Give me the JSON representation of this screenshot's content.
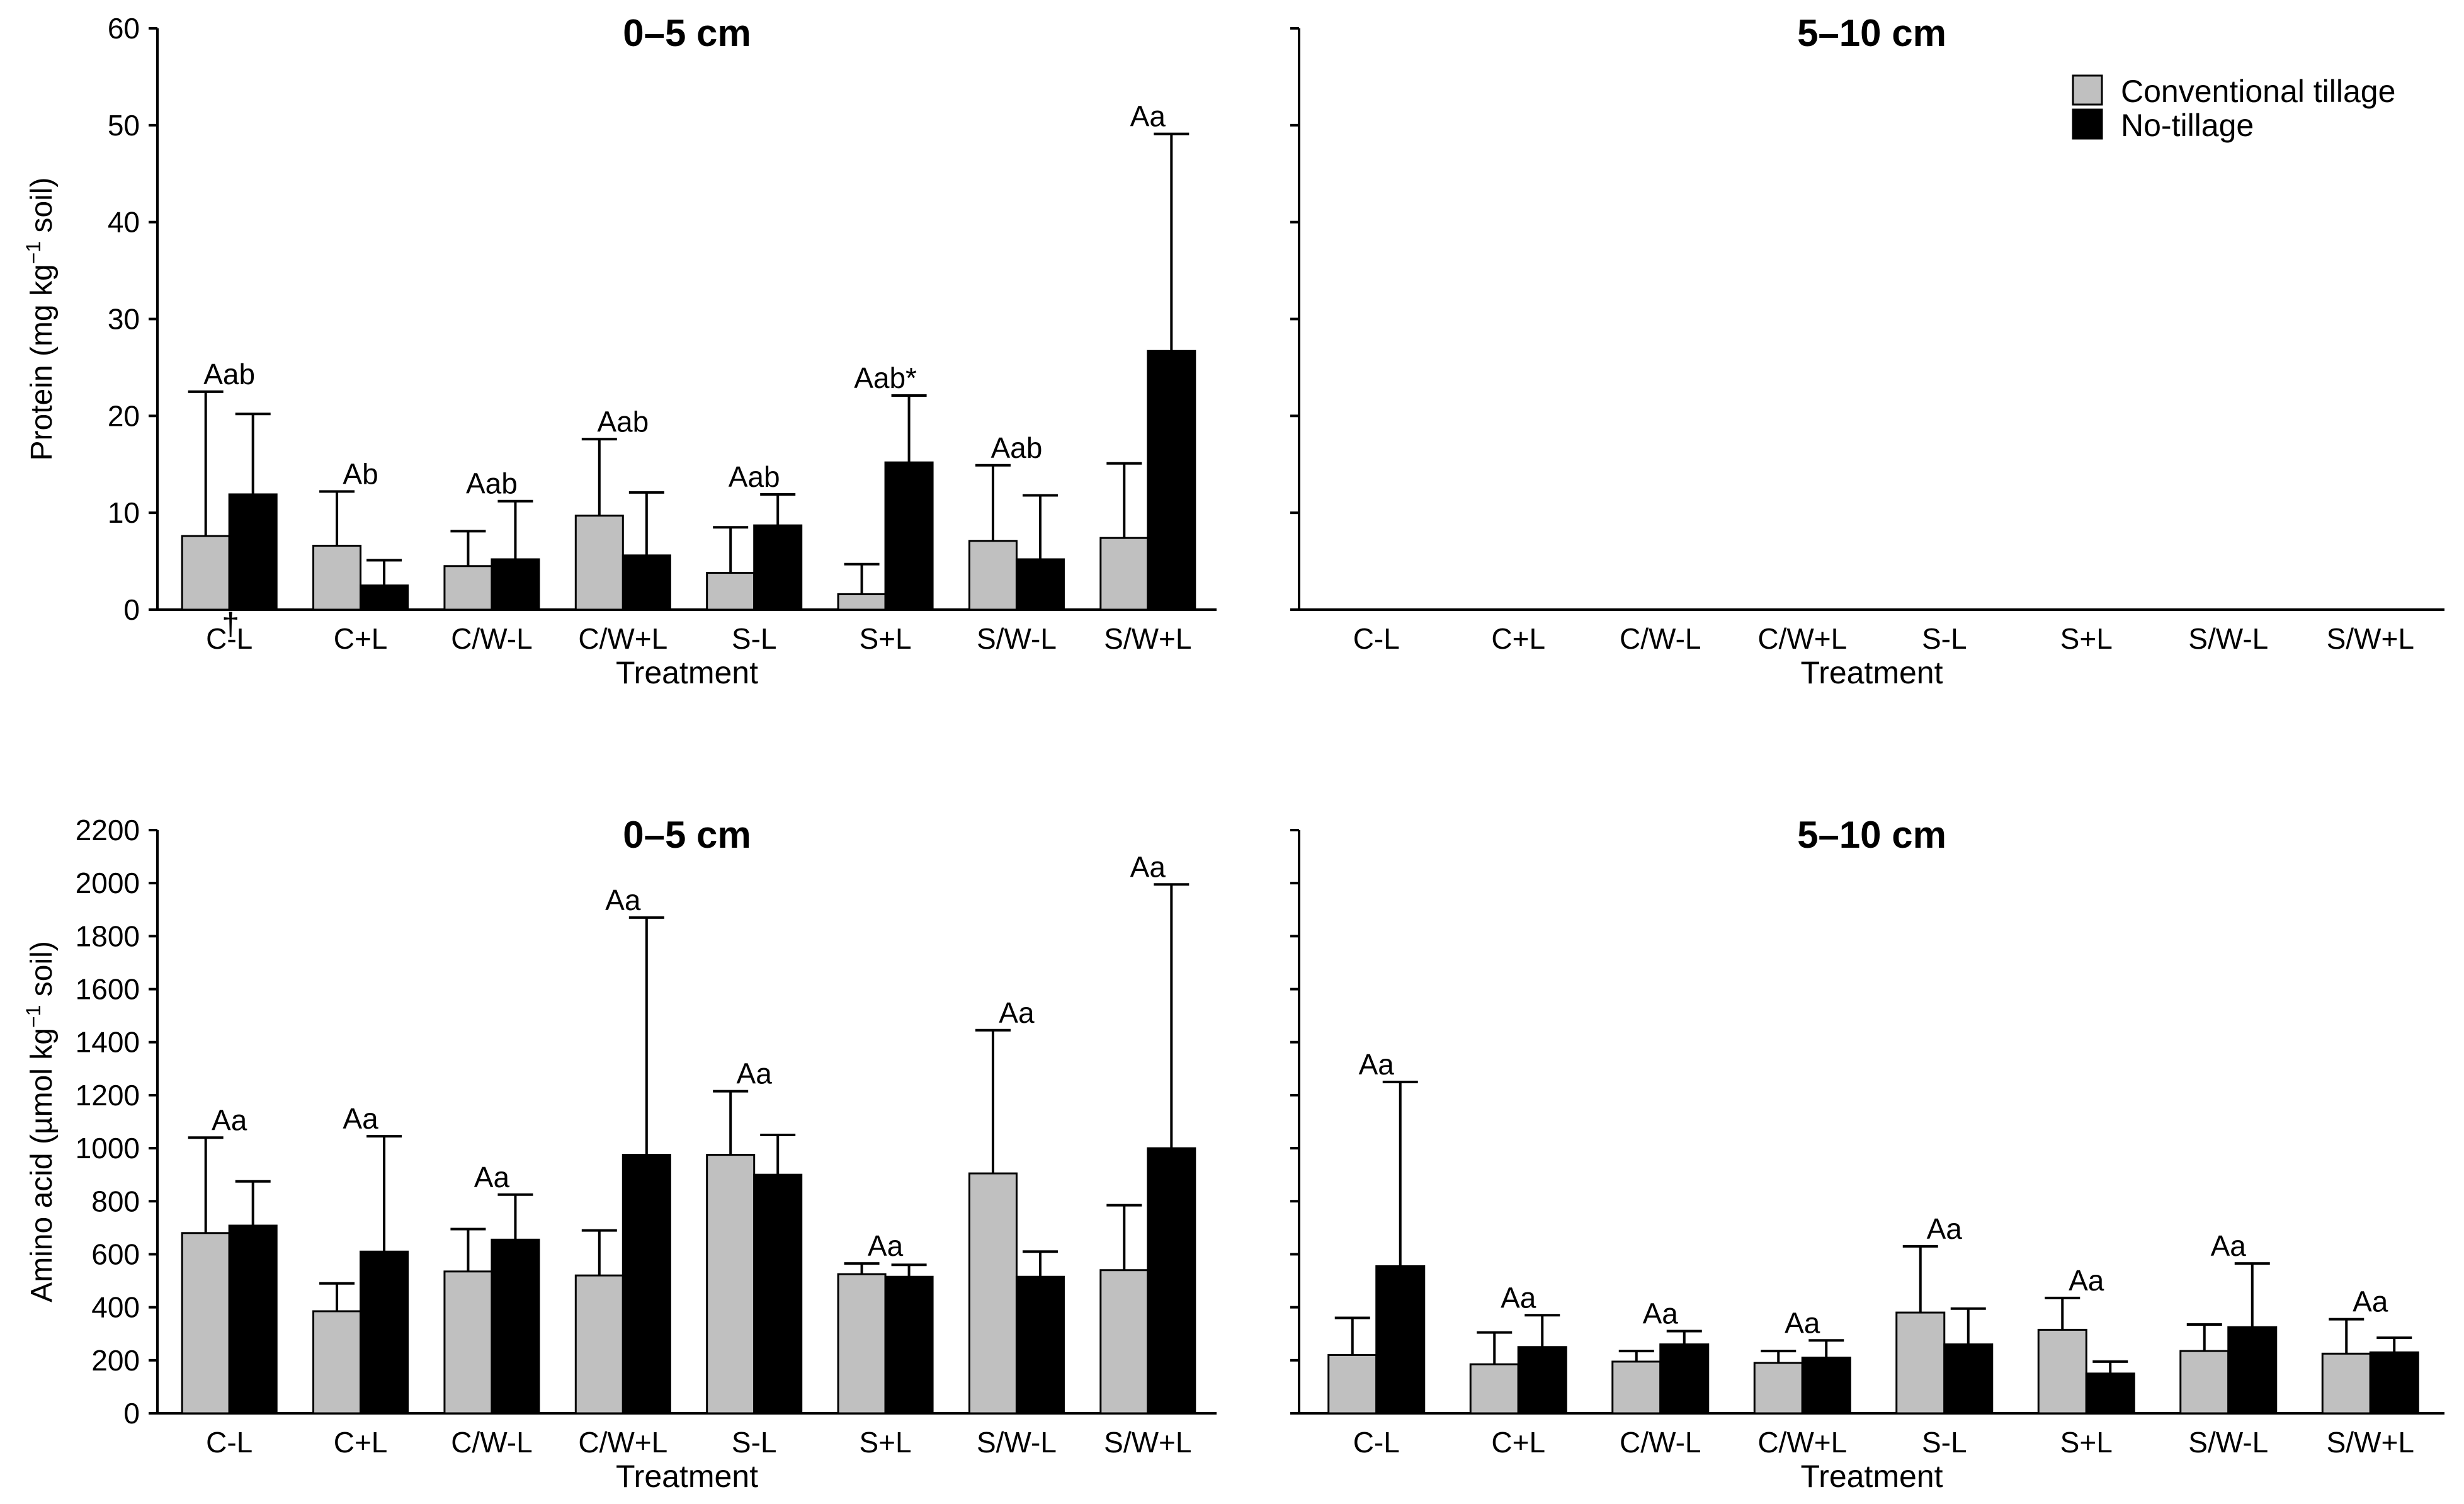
{
  "colors": {
    "conventional": "#c0c0c0",
    "no_tillage": "#000000",
    "axis": "#000000"
  },
  "legend": {
    "items": [
      "Conventional tillage",
      "No-tillage"
    ],
    "placement": "top-right of 5–10 cm protein panel"
  },
  "chart_data": [
    {
      "id": "protein-0-5",
      "type": "bar",
      "title": "0–5 cm",
      "ylabel_pre": "Protein (mg kg",
      "ylabel_sup": "−1",
      "ylabel_post": " soil)",
      "xlabel": "Treatment",
      "ylim": [
        0,
        60
      ],
      "yticks": [
        0,
        10,
        20,
        30,
        40,
        50,
        60
      ],
      "categories": [
        "C-L",
        "C+L",
        "C/W-L",
        "C/W+L",
        "S-L",
        "S+L",
        "S/W-L",
        "S/W+L"
      ],
      "series": [
        {
          "name": "Conventional tillage",
          "values": [
            7.6,
            6.6,
            4.5,
            9.7,
            3.8,
            1.6,
            7.1,
            7.4
          ],
          "errors": [
            14.9,
            5.6,
            3.6,
            7.9,
            4.7,
            3.1,
            7.8,
            7.7
          ]
        },
        {
          "name": "No-tillage",
          "values": [
            11.9,
            2.5,
            5.2,
            5.6,
            8.7,
            15.2,
            5.2,
            26.7
          ],
          "errors": [
            8.3,
            2.6,
            6.0,
            6.5,
            3.2,
            6.9,
            6.6,
            22.4
          ]
        }
      ],
      "annotations": [
        "Aab",
        "Ab",
        "Aab",
        "Aab",
        "Aab",
        "Aab*",
        "Aab",
        "Aa"
      ],
      "extra_mark": "†"
    },
    {
      "id": "protein-5-10",
      "type": "bar",
      "title": "5–10 cm",
      "xlabel": "Treatment",
      "categories": [
        "C-L",
        "C+L",
        "C/W-L",
        "C/W+L",
        "S-L",
        "S+L",
        "S/W-L",
        "S/W+L"
      ],
      "series": []
    },
    {
      "id": "amino-0-5",
      "type": "bar",
      "title": "0–5 cm",
      "ylabel_pre": "Amino acid (µmol kg",
      "ylabel_sup": "−1",
      "ylabel_post": " soil)",
      "xlabel": "Treatment",
      "ylim": [
        0,
        2200
      ],
      "yticks": [
        0,
        200,
        400,
        600,
        800,
        1000,
        1200,
        1400,
        1600,
        1800,
        2000,
        2200
      ],
      "categories": [
        "C-L",
        "C+L",
        "C/W-L",
        "C/W+L",
        "S-L",
        "S+L",
        "S/W-L",
        "S/W+L"
      ],
      "series": [
        {
          "name": "Conventional tillage",
          "values": [
            680,
            385,
            535,
            520,
            975,
            525,
            905,
            540
          ],
          "errors": [
            360,
            105,
            160,
            170,
            240,
            40,
            540,
            245
          ]
        },
        {
          "name": "No-tillage",
          "values": [
            708,
            610,
            655,
            975,
            900,
            515,
            515,
            1000
          ],
          "errors": [
            167,
            435,
            170,
            895,
            150,
            45,
            95,
            995
          ]
        }
      ],
      "annotations": [
        "Aa",
        "Aa",
        "Aa",
        "Aa",
        "Aa",
        "Aa",
        "Aa",
        "Aa"
      ]
    },
    {
      "id": "amino-5-10",
      "type": "bar",
      "title": "5–10 cm",
      "xlabel": "Treatment",
      "ylim": [
        0,
        2200
      ],
      "categories": [
        "C-L",
        "C+L",
        "C/W-L",
        "C/W+L",
        "S-L",
        "S+L",
        "S/W-L",
        "S/W+L"
      ],
      "series": [
        {
          "name": "Conventional tillage",
          "values": [
            220,
            185,
            195,
            190,
            380,
            315,
            235,
            225
          ],
          "errors": [
            140,
            120,
            40,
            45,
            250,
            120,
            100,
            130
          ]
        },
        {
          "name": "No-tillage",
          "values": [
            555,
            250,
            260,
            210,
            260,
            150,
            325,
            230
          ],
          "errors": [
            695,
            120,
            50,
            65,
            135,
            45,
            240,
            55
          ]
        }
      ],
      "annotations": [
        "Aa",
        "Aa",
        "Aa",
        "Aa",
        "Aa",
        "Aa",
        "Aa",
        "Aa"
      ]
    }
  ]
}
